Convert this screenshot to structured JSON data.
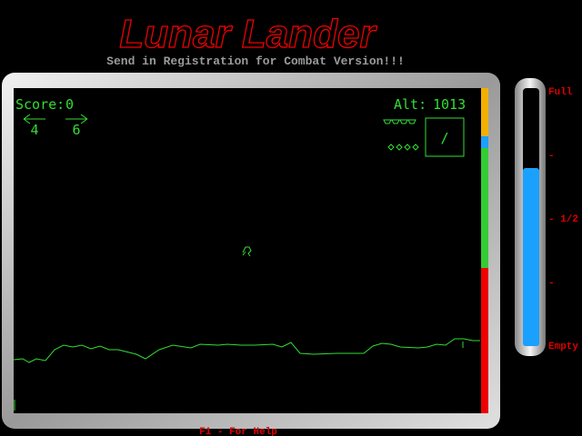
{
  "header": {
    "title": "Lunar Lander",
    "subtitle": "Send in Registration for Combat Version!!!"
  },
  "hud": {
    "score_label": "Score:",
    "score": 0,
    "alt_label": "Alt:",
    "altitude": 1013,
    "left_thrust": 4,
    "right_thrust": 6,
    "attitude": "/"
  },
  "fuel_gauge": {
    "labels": [
      "Full",
      "-",
      "- 1/2",
      "-",
      "Empty"
    ]
  },
  "footer": {
    "help": "F1 - For Help"
  }
}
